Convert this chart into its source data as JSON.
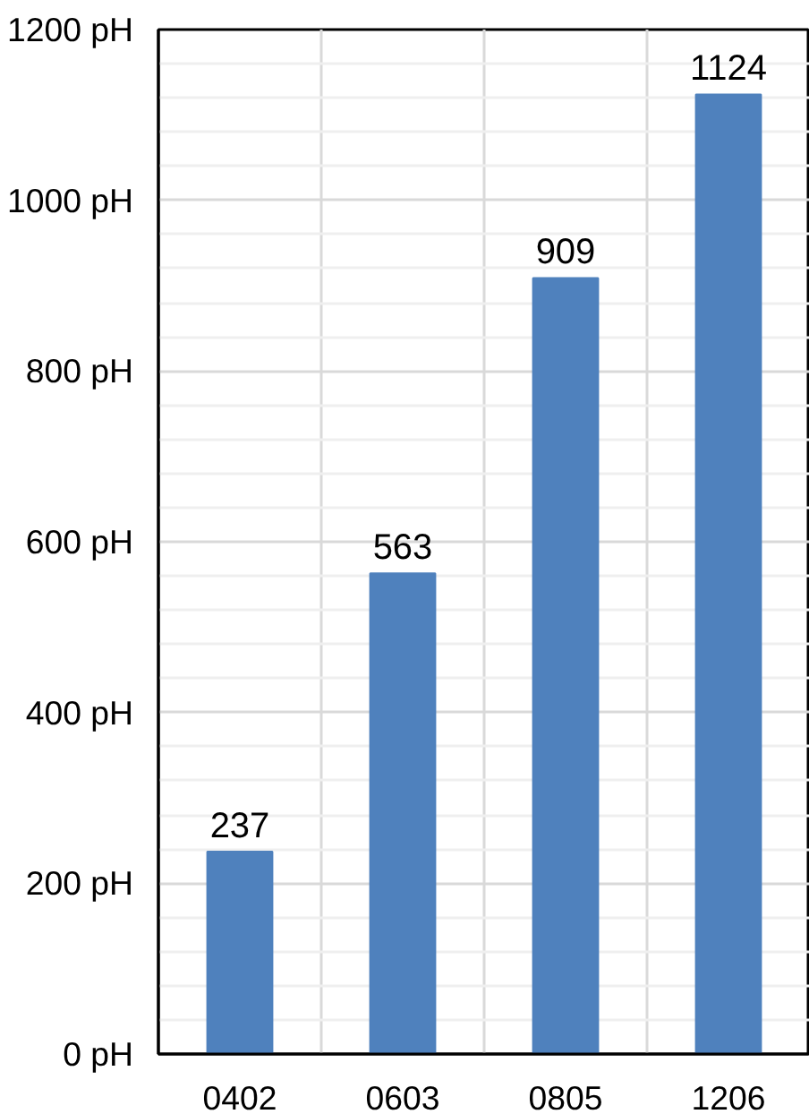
{
  "chart_data": {
    "type": "bar",
    "categories": [
      "0402",
      "0603",
      "0805",
      "1206"
    ],
    "values": [
      237,
      563,
      909,
      1124
    ],
    "color": "#4f81bd",
    "data_labels": true,
    "ylim": [
      0,
      1200
    ],
    "yticks": [
      {
        "value": 0,
        "label": "0 pH"
      },
      {
        "value": 200,
        "label": "200 pH"
      },
      {
        "value": 400,
        "label": "400 pH"
      },
      {
        "value": 600,
        "label": "600 pH"
      },
      {
        "value": 800,
        "label": "800 pH"
      },
      {
        "value": 1000,
        "label": "1000 pH"
      },
      {
        "value": 1200,
        "label": "1200 pH"
      }
    ],
    "grid": true
  }
}
